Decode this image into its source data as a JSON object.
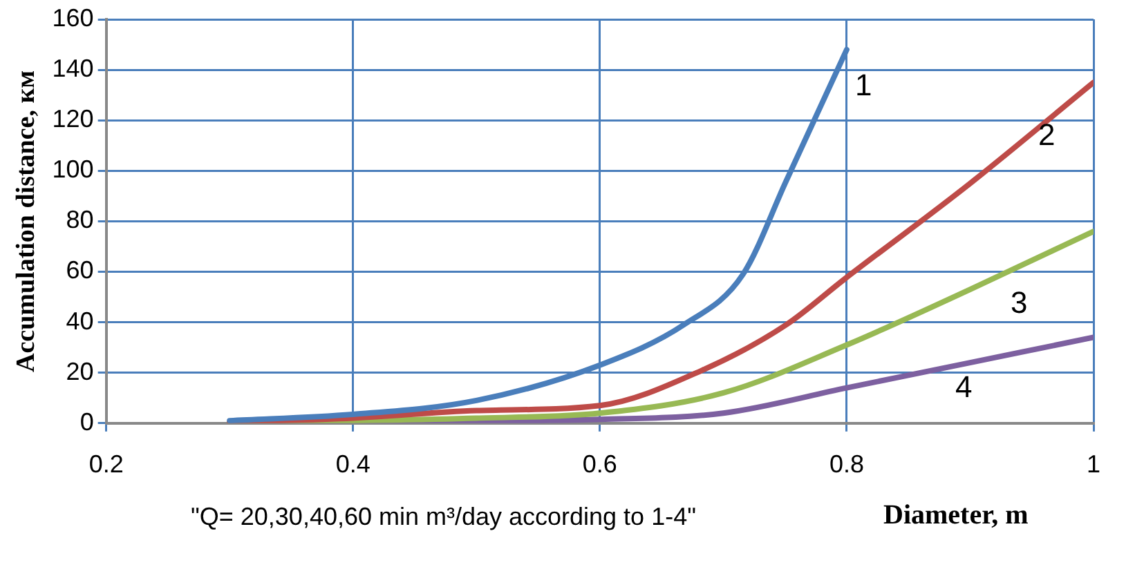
{
  "chart_data": {
    "type": "line",
    "ylabel": "Accumulation distance, км",
    "xlabel": "Diameter, m",
    "xlim": [
      0.2,
      1
    ],
    "xticks": [
      0.2,
      0.4,
      0.6,
      0.8,
      1
    ],
    "ylim": [
      0,
      160
    ],
    "yticks": [
      0,
      20,
      40,
      60,
      80,
      100,
      120,
      140,
      160
    ],
    "grid": true,
    "legend": false,
    "marker": "none",
    "line_style": "solid",
    "series": [
      {
        "name": "1",
        "color": "#4a7ebb",
        "x": [
          0.3,
          0.4,
          0.5,
          0.6,
          0.668,
          0.716,
          0.751,
          0.8
        ],
        "values": [
          1,
          3.5,
          9,
          23,
          39,
          59,
          96,
          148
        ]
      },
      {
        "name": "2",
        "color": "#be4b48",
        "x": [
          0.3,
          0.4,
          0.5,
          0.6,
          0.683,
          0.751,
          0.798,
          0.9,
          1
        ],
        "values": [
          0.5,
          2,
          5,
          7,
          21,
          39,
          57,
          95,
          135
        ]
      },
      {
        "name": "3",
        "color": "#98b954",
        "x": [
          0.3,
          0.4,
          0.5,
          0.6,
          0.7,
          0.8,
          0.9,
          1
        ],
        "values": [
          0.3,
          1,
          2,
          4,
          12,
          31,
          53,
          76
        ]
      },
      {
        "name": "4",
        "color": "#7d60a0",
        "x": [
          0.3,
          0.4,
          0.5,
          0.6,
          0.7,
          0.8,
          0.9,
          1
        ],
        "values": [
          0.1,
          0.3,
          0.8,
          1.5,
          4,
          14,
          24,
          34
        ]
      }
    ],
    "annotations": [
      "\"Q= 20,30,40,60 min m³/day according to 1-4\""
    ]
  }
}
